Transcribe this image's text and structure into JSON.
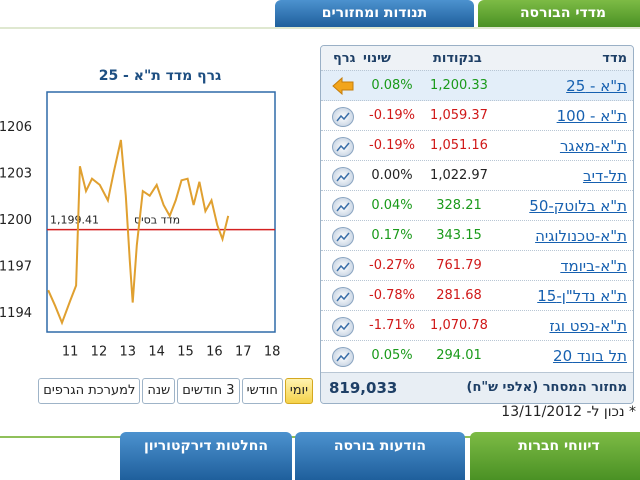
{
  "top_tabs": [
    {
      "label": "מדדי הבורסה"
    },
    {
      "label": "תנודות ומחזורים"
    }
  ],
  "chart_data": {
    "type": "line",
    "title": "גרף מדד ת\"א - 25",
    "color": "#e0a030",
    "x": [
      10.24,
      10.48,
      10.72,
      11.0,
      11.21,
      11.34,
      11.55,
      11.76,
      12.03,
      12.31,
      12.52,
      12.76,
      12.93,
      13.07,
      13.17,
      13.31,
      13.52,
      13.76,
      14.0,
      14.24,
      14.45,
      14.66,
      14.86,
      15.07,
      15.28,
      15.48,
      15.69,
      15.9,
      16.1,
      16.28,
      16.48
    ],
    "values": [
      1195.5,
      1194.5,
      1193.4,
      1194.8,
      1195.8,
      1203.5,
      1201.9,
      1202.7,
      1202.3,
      1201.3,
      1203.2,
      1205.2,
      1201.6,
      1197.4,
      1194.7,
      1198.4,
      1201.9,
      1201.6,
      1202.3,
      1201.0,
      1200.3,
      1201.3,
      1202.6,
      1202.7,
      1201.0,
      1202.5,
      1200.6,
      1201.3,
      1199.7,
      1198.8,
      1200.3
    ],
    "xlim": [
      10.2,
      18.1
    ],
    "xticks": [
      11,
      12,
      13,
      14,
      15,
      16,
      17,
      18
    ],
    "ylim": [
      1192.8,
      1208.3
    ],
    "yticks": [
      1194,
      1197,
      1200,
      1203,
      1206
    ],
    "base_line": {
      "value": 1199.41,
      "label": "1,199.41",
      "text": "מדד בסיס",
      "color": "#d42020"
    }
  },
  "range_buttons": [
    {
      "label": "יומי"
    },
    {
      "label": "חודשי"
    },
    {
      "label": "3 חודשים"
    },
    {
      "label": "שנה"
    },
    {
      "label": "למערכת הגרפים"
    }
  ],
  "table": {
    "headers": [
      "מדד",
      "בנקודות",
      "שינוי",
      "גרף"
    ],
    "rows": [
      [
        "ת\"א - 25",
        "1,200.33",
        "0.08%"
      ],
      [
        "ת\"א - 100",
        "1,059.37",
        "-0.19%"
      ],
      [
        "ת\"א-מאגר",
        "1,051.16",
        "-0.19%"
      ],
      [
        "תל-דיב",
        "1,022.97",
        "0.00%"
      ],
      [
        "ת\"א בלוטק-50",
        "328.21",
        "0.04%"
      ],
      [
        "ת\"א-טכנולוגיה",
        "343.15",
        "0.17%"
      ],
      [
        "ת\"א-ביומד",
        "761.79",
        "-0.27%"
      ],
      [
        "ת\"א נדל\"ן-15",
        "281.68",
        "-0.78%"
      ],
      [
        "ת\"א-נפט וגז",
        "1,070.78",
        "-1.71%"
      ],
      [
        "תל בונד 20",
        "294.01",
        "0.05%"
      ]
    ],
    "turnover_label": "מחזור המסחר (אלפי ש\"ח)",
    "turnover": "819,033"
  },
  "as_of_label": "* נכון ל-",
  "as_of_date": "13/11/2012",
  "bottom_tabs": [
    {
      "label": "דיווחי חברות"
    },
    {
      "label": "הודעות בורסה"
    },
    {
      "label": "החלטות דירקטוריון"
    }
  ]
}
